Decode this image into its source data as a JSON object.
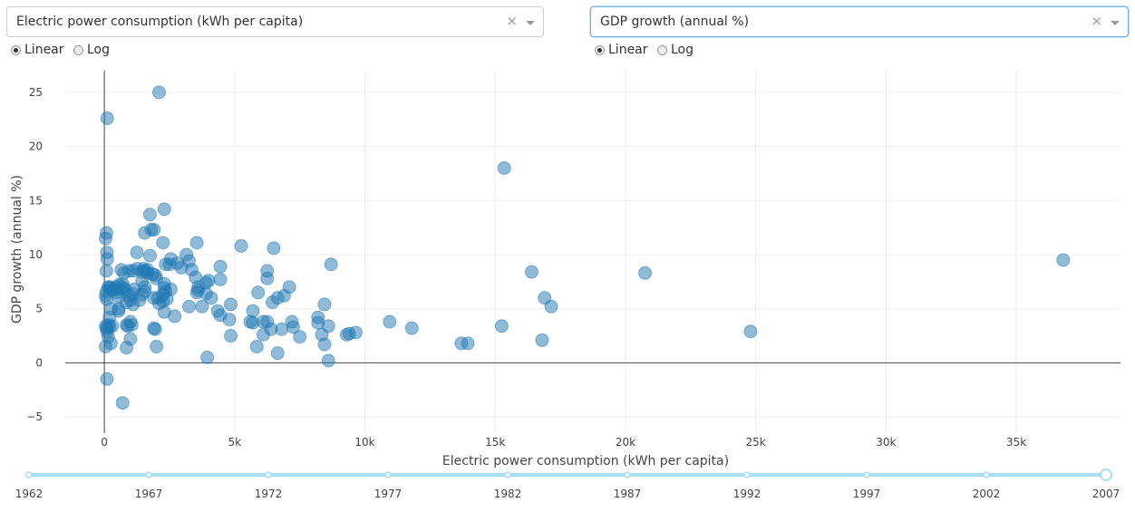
{
  "x_dropdown": {
    "value": "Electric power consumption (kWh per capita)",
    "clear": "×"
  },
  "y_dropdown": {
    "value": "GDP growth (annual %)",
    "clear": "×"
  },
  "x_scale": {
    "options": [
      "Linear",
      "Log"
    ],
    "selected": "Linear"
  },
  "y_scale": {
    "options": [
      "Linear",
      "Log"
    ],
    "selected": "Linear"
  },
  "colors": {
    "marker": "#1f77b4",
    "slider": "#a8dff5"
  },
  "slider": {
    "marks": [
      "1962",
      "1967",
      "1972",
      "1977",
      "1982",
      "1987",
      "1992",
      "1997",
      "2002",
      "2007"
    ],
    "value": "2007"
  },
  "chart_data": {
    "type": "scatter",
    "xlabel": "Electric power consumption (kWh per capita)",
    "ylabel": "GDP growth (annual %)",
    "xlim": [
      -1500,
      39000
    ],
    "ylim": [
      -6.5,
      27
    ],
    "xticks": [
      0,
      5000,
      10000,
      15000,
      20000,
      25000,
      30000,
      35000
    ],
    "xtick_labels": [
      "0",
      "5k",
      "10k",
      "15k",
      "20k",
      "25k",
      "30k",
      "35k"
    ],
    "yticks": [
      -5,
      0,
      5,
      10,
      15,
      20,
      25
    ],
    "ytick_labels": [
      "−5",
      "0",
      "5",
      "10",
      "15",
      "20",
      "25"
    ],
    "grid": true,
    "points": [
      [
        110,
        22.6
      ],
      [
        2100,
        25.0
      ],
      [
        15350,
        18.0
      ],
      [
        36800,
        9.5
      ],
      [
        20750,
        8.3
      ],
      [
        24800,
        2.9
      ],
      [
        16400,
        8.4
      ],
      [
        16900,
        6.0
      ],
      [
        17150,
        5.2
      ],
      [
        16800,
        2.1
      ],
      [
        15250,
        3.4
      ],
      [
        13700,
        1.8
      ],
      [
        13950,
        1.8
      ],
      [
        11800,
        3.2
      ],
      [
        10950,
        3.8
      ],
      [
        5250,
        10.8
      ],
      [
        6500,
        10.6
      ],
      [
        6250,
        8.5
      ],
      [
        6250,
        7.8
      ],
      [
        8700,
        9.1
      ],
      [
        7100,
        7.0
      ],
      [
        6900,
        6.2
      ],
      [
        6650,
        6.0
      ],
      [
        6450,
        5.6
      ],
      [
        5900,
        6.5
      ],
      [
        8450,
        5.4
      ],
      [
        8200,
        4.2
      ],
      [
        8200,
        3.7
      ],
      [
        8600,
        3.4
      ],
      [
        8350,
        2.6
      ],
      [
        8450,
        1.7
      ],
      [
        8600,
        0.2
      ],
      [
        9300,
        2.6
      ],
      [
        9650,
        2.8
      ],
      [
        9400,
        2.7
      ],
      [
        7500,
        2.4
      ],
      [
        7200,
        3.8
      ],
      [
        7250,
        3.3
      ],
      [
        6800,
        3.1
      ],
      [
        6650,
        0.9
      ],
      [
        6250,
        3.8
      ],
      [
        6100,
        3.8
      ],
      [
        6400,
        3.1
      ],
      [
        6100,
        2.6
      ],
      [
        5700,
        4.8
      ],
      [
        5700,
        3.7
      ],
      [
        5600,
        3.8
      ],
      [
        5850,
        1.5
      ],
      [
        4850,
        5.4
      ],
      [
        4800,
        4.0
      ],
      [
        4850,
        2.5
      ],
      [
        4450,
        7.7
      ],
      [
        4450,
        8.9
      ],
      [
        4350,
        4.8
      ],
      [
        4450,
        4.4
      ],
      [
        4000,
        7.6
      ],
      [
        3900,
        7.4
      ],
      [
        4100,
        6.0
      ],
      [
        3900,
        6.4
      ],
      [
        3750,
        5.2
      ],
      [
        3950,
        0.5
      ],
      [
        3550,
        11.1
      ],
      [
        3500,
        7.9
      ],
      [
        3600,
        6.7
      ],
      [
        3550,
        6.5
      ],
      [
        3600,
        7.0
      ],
      [
        3350,
        8.6
      ],
      [
        3250,
        5.2
      ],
      [
        3150,
        10.0
      ],
      [
        3250,
        9.4
      ],
      [
        2950,
        8.8
      ],
      [
        2800,
        9.2
      ],
      [
        2550,
        9.6
      ],
      [
        2500,
        9.1
      ],
      [
        2350,
        9.1
      ],
      [
        2300,
        6.9
      ],
      [
        2550,
        6.8
      ],
      [
        2350,
        6.6
      ],
      [
        2250,
        6.3
      ],
      [
        2300,
        7.3
      ],
      [
        2300,
        4.7
      ],
      [
        2400,
        5.9
      ],
      [
        2250,
        5.7
      ],
      [
        2700,
        4.3
      ],
      [
        2250,
        11.1
      ],
      [
        2300,
        14.2
      ],
      [
        2050,
        6.0
      ],
      [
        2100,
        5.5
      ],
      [
        2000,
        7.8
      ],
      [
        1950,
        8.1
      ],
      [
        1850,
        8.2
      ],
      [
        1800,
        12.3
      ],
      [
        1900,
        12.3
      ],
      [
        1750,
        13.7
      ],
      [
        1750,
        9.9
      ],
      [
        1650,
        8.3
      ],
      [
        1650,
        8.6
      ],
      [
        1450,
        8.4
      ],
      [
        1500,
        8.7
      ],
      [
        1550,
        8.5
      ],
      [
        1450,
        7.6
      ],
      [
        1550,
        7.0
      ],
      [
        1550,
        6.6
      ],
      [
        1450,
        6.3
      ],
      [
        1350,
        5.8
      ],
      [
        1250,
        8.7
      ],
      [
        1250,
        10.2
      ],
      [
        1550,
        12.0
      ],
      [
        1900,
        6.0
      ],
      [
        1900,
        3.2
      ],
      [
        1950,
        3.1
      ],
      [
        2000,
        1.5
      ],
      [
        1150,
        6.8
      ],
      [
        1100,
        6.4
      ],
      [
        950,
        6.2
      ],
      [
        1000,
        5.8
      ],
      [
        1100,
        5.4
      ],
      [
        850,
        5.6
      ],
      [
        950,
        8.5
      ],
      [
        1100,
        8.5
      ],
      [
        750,
        8.3
      ],
      [
        650,
        8.6
      ],
      [
        700,
        7.3
      ],
      [
        650,
        6.8
      ],
      [
        550,
        7.2
      ],
      [
        450,
        7.0
      ],
      [
        550,
        6.1
      ],
      [
        550,
        5.0
      ],
      [
        550,
        4.8
      ],
      [
        500,
        6.5
      ],
      [
        400,
        6.8
      ],
      [
        300,
        6.7
      ],
      [
        250,
        6.9
      ],
      [
        200,
        7.0
      ],
      [
        150,
        7.0
      ],
      [
        80,
        6.6
      ],
      [
        50,
        6.2
      ],
      [
        90,
        5.9
      ],
      [
        80,
        8.5
      ],
      [
        110,
        9.6
      ],
      [
        100,
        10.2
      ],
      [
        50,
        11.5
      ],
      [
        80,
        12.0
      ],
      [
        250,
        5.0
      ],
      [
        200,
        4.2
      ],
      [
        150,
        3.5
      ],
      [
        200,
        3.3
      ],
      [
        50,
        3.4
      ],
      [
        80,
        3.2
      ],
      [
        100,
        2.9
      ],
      [
        150,
        2.4
      ],
      [
        50,
        1.5
      ],
      [
        300,
        3.4
      ],
      [
        250,
        1.8
      ],
      [
        100,
        -1.5
      ],
      [
        850,
        3.5
      ],
      [
        850,
        1.4
      ],
      [
        900,
        3.4
      ],
      [
        1000,
        3.8
      ],
      [
        1050,
        3.5
      ],
      [
        1000,
        2.2
      ],
      [
        700,
        -3.7
      ],
      [
        700,
        7.0
      ],
      [
        800,
        6.8
      ]
    ]
  }
}
